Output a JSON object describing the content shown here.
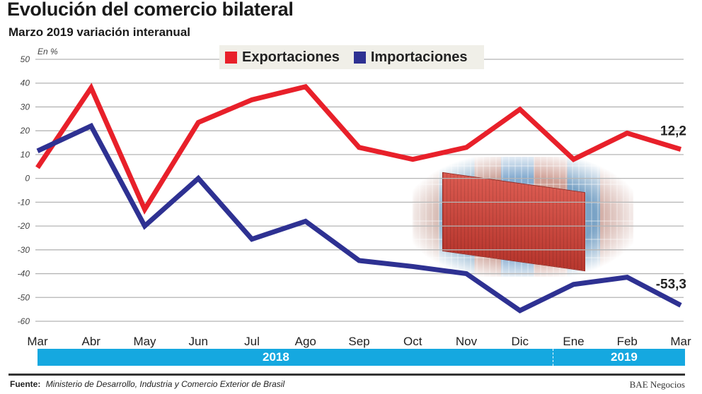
{
  "header": {
    "title": "Evolución del comercio bilateral",
    "subtitle": "Marzo 2019 variación interanual"
  },
  "chart_data": {
    "type": "line",
    "title": "Evolución del comercio bilateral",
    "subtitle": "Marzo 2019 variación interanual",
    "ylabel": "En %",
    "ylim": [
      -60,
      50
    ],
    "yticks": [
      50,
      40,
      30,
      20,
      10,
      0,
      -10,
      -20,
      -30,
      -40,
      -50,
      -60
    ],
    "grid": true,
    "legend_position": "top-center",
    "categories": [
      "Mar",
      "Abr",
      "May",
      "Jun",
      "Jul",
      "Ago",
      "Sep",
      "Oct",
      "Nov",
      "Dic",
      "Ene",
      "Feb",
      "Mar"
    ],
    "years": [
      {
        "label": "2018",
        "from": "Mar",
        "to": "Dic"
      },
      {
        "label": "2019",
        "from": "Ene",
        "to": "Mar"
      }
    ],
    "series": [
      {
        "name": "Exportaciones",
        "color": "#e8202a",
        "values": [
          4.5,
          38,
          -13,
          23.5,
          33,
          38.5,
          13,
          8,
          13,
          29,
          8,
          19,
          12.2
        ],
        "end_label": "12,2"
      },
      {
        "name": "Importaciones",
        "color": "#2e3192",
        "values": [
          11.5,
          22,
          -20,
          0,
          -25.5,
          -18,
          -34.5,
          -37,
          -40,
          -55.5,
          -44.5,
          -41.5,
          -53.3
        ],
        "end_label": "-53,3"
      }
    ]
  },
  "footer": {
    "source_label": "Fuente:",
    "source_text": "Ministerio de Desarrollo, Industria y Comercio Exterior de Brasil",
    "brand": "BAE Negocios"
  },
  "colors": {
    "year_bar": "#15a8e0",
    "grid": "#b5b5b5"
  }
}
